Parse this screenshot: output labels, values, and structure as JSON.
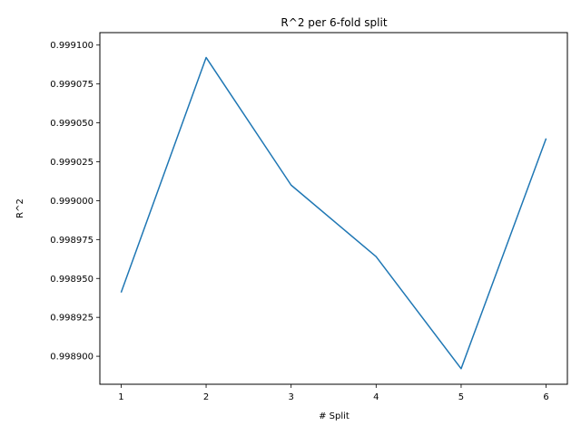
{
  "chart_data": {
    "type": "line",
    "title": "R^2 per 6-fold split",
    "xlabel": "# Split",
    "ylabel": "R^2",
    "x": [
      1,
      2,
      3,
      4,
      5,
      6
    ],
    "series": [
      {
        "values": [
          0.998941,
          0.999092,
          0.99901,
          0.998964,
          0.998892,
          0.99904
        ],
        "color": "#1f77b4"
      }
    ],
    "x_ticks": [
      "1",
      "2",
      "3",
      "4",
      "5",
      "6"
    ],
    "y_ticks": [
      "0.998900",
      "0.998925",
      "0.998950",
      "0.998975",
      "0.999000",
      "0.999025",
      "0.999050",
      "0.999075",
      "0.999100"
    ],
    "xlim": [
      0.75,
      6.25
    ],
    "ylim": [
      0.998882,
      0.999108
    ],
    "grid": false,
    "legend": false
  }
}
